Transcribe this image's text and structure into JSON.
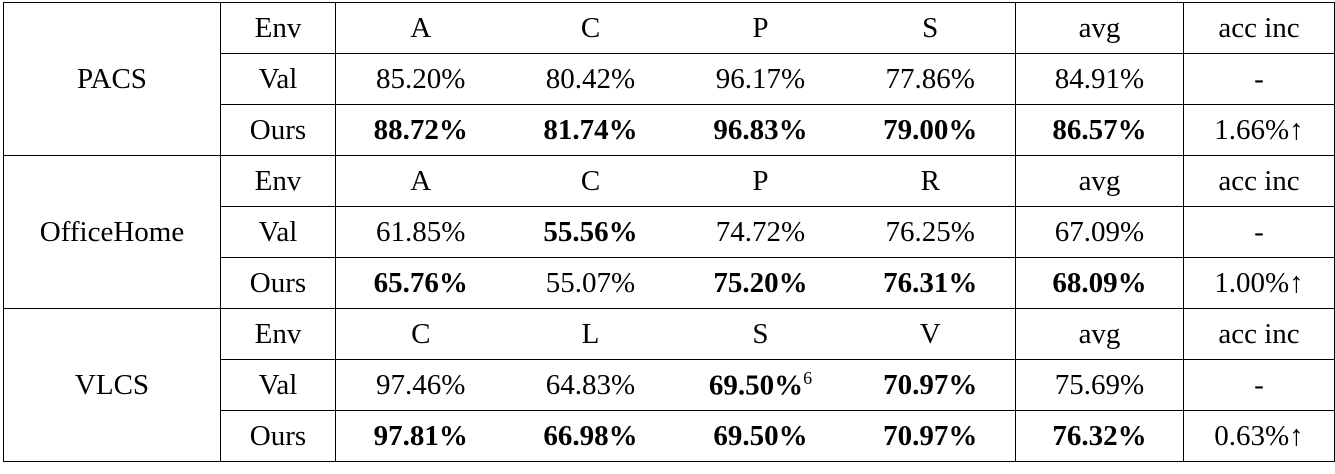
{
  "groups": [
    {
      "dataset": "PACS",
      "rows": [
        [
          "Env",
          "A",
          "C",
          "P",
          "S",
          "avg",
          "acc inc"
        ],
        [
          "Val",
          "85.20%",
          "80.42%",
          "96.17%",
          "77.86%",
          "84.91%",
          "-"
        ],
        [
          "Ours",
          "88.72%",
          "81.74%",
          "96.83%",
          "79.00%",
          "86.57%",
          "1.66%↑"
        ]
      ]
    },
    {
      "dataset": "OfficeHome",
      "rows": [
        [
          "Env",
          "A",
          "C",
          "P",
          "R",
          "avg",
          "acc inc"
        ],
        [
          "Val",
          "61.85%",
          "55.56%",
          "74.72%",
          "76.25%",
          "67.09%",
          "-"
        ],
        [
          "Ours",
          "65.76%",
          "55.07%",
          "75.20%",
          "76.31%",
          "68.09%",
          "1.00%↑"
        ]
      ]
    },
    {
      "dataset": "VLCS",
      "footnote": "6",
      "rows": [
        [
          "Env",
          "C",
          "L",
          "S",
          "V",
          "avg",
          "acc inc"
        ],
        [
          "Val",
          "97.46%",
          "64.83%",
          "69.50%",
          "70.97%",
          "75.69%",
          "-"
        ],
        [
          "Ours",
          "97.81%",
          "66.98%",
          "69.50%",
          "70.97%",
          "76.32%",
          "0.63%↑"
        ]
      ]
    }
  ]
}
